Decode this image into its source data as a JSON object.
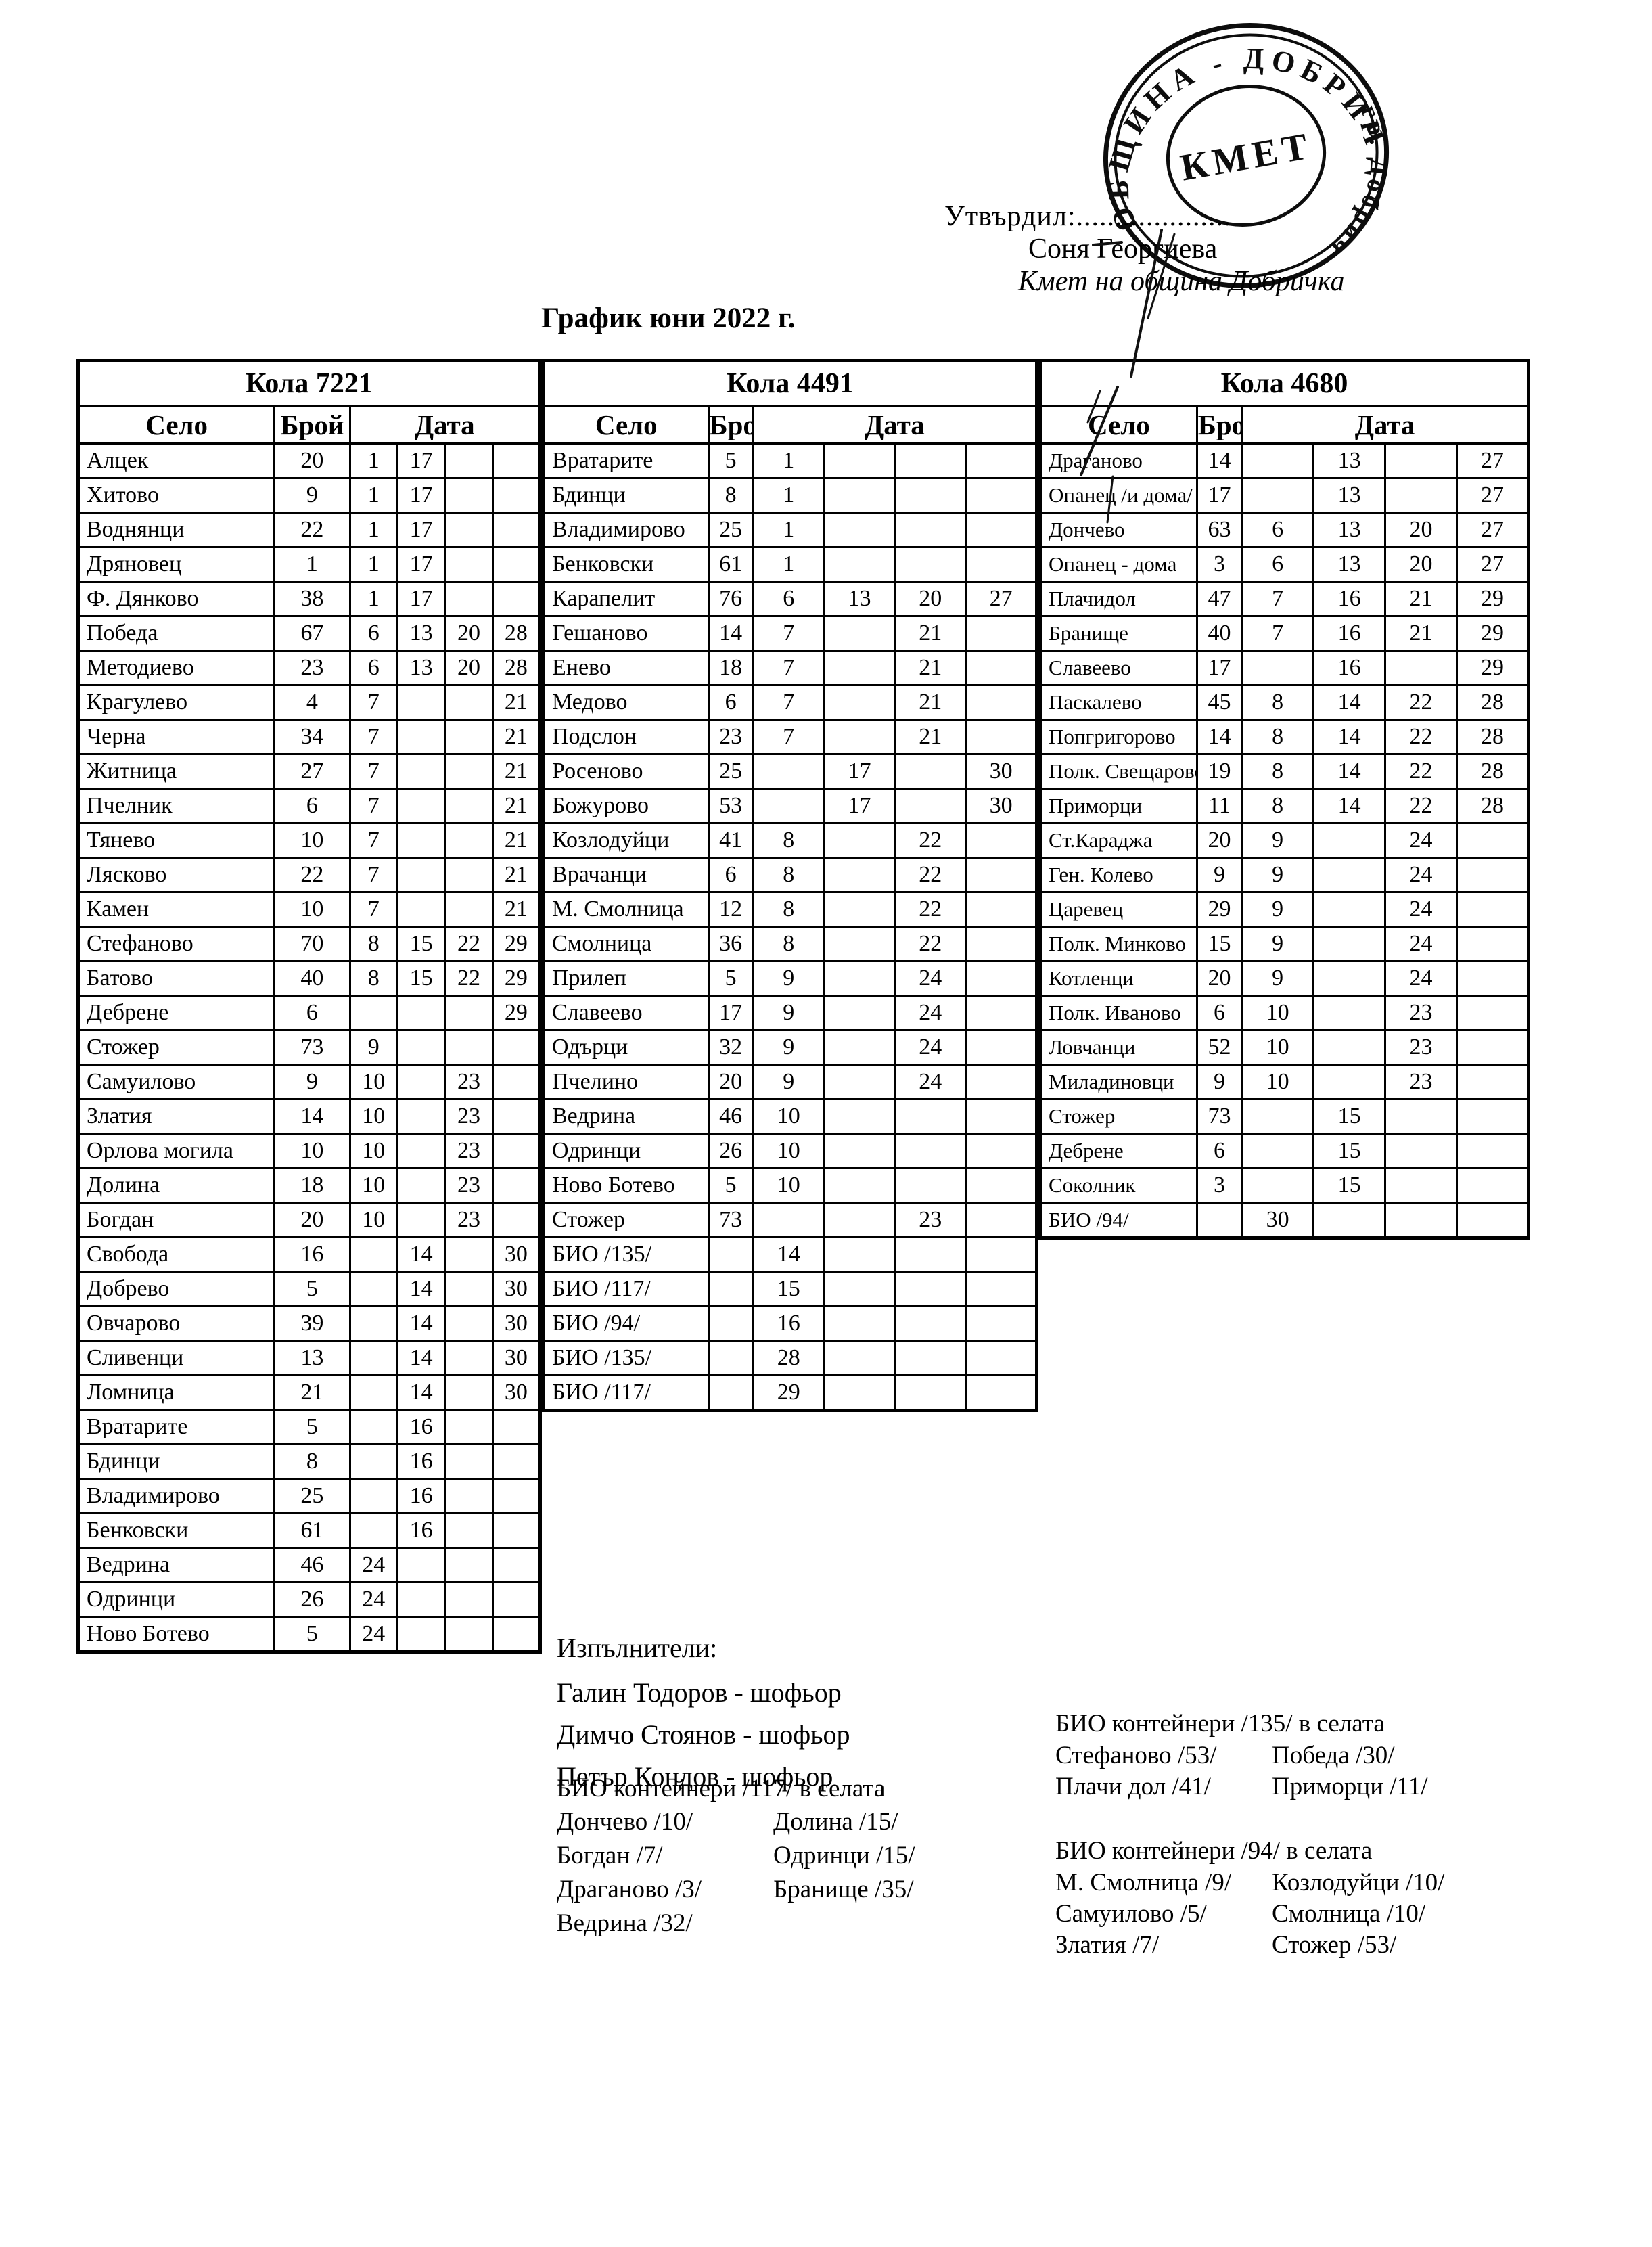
{
  "approval": {
    "label": "Утвърдил:....................",
    "name": "Соня Георгиева",
    "title": "Кмет на община Добричка"
  },
  "stamp": {
    "ring_text_top": "ОБЩИНА - ДОБРИЧ",
    "ring_text_right": "гр. Добрич",
    "center_text": "КМЕТ"
  },
  "title": "График юни 2022 г.",
  "columns": {
    "village": "Село",
    "count": "Брой",
    "date": "Дата"
  },
  "tables": [
    {
      "title": "Кола 7221",
      "rows": [
        [
          "Алцек",
          "20",
          [
            "1",
            "17",
            "",
            ""
          ]
        ],
        [
          "Хитово",
          "9",
          [
            "1",
            "17",
            "",
            ""
          ]
        ],
        [
          "Воднянци",
          "22",
          [
            "1",
            "17",
            "",
            ""
          ]
        ],
        [
          "Дряновец",
          "1",
          [
            "1",
            "17",
            "",
            ""
          ]
        ],
        [
          "Ф. Дянково",
          "38",
          [
            "1",
            "17",
            "",
            ""
          ]
        ],
        [
          "Победа",
          "67",
          [
            "6",
            "13",
            "20",
            "28"
          ]
        ],
        [
          "Методиево",
          "23",
          [
            "6",
            "13",
            "20",
            "28"
          ]
        ],
        [
          "Крагулево",
          "4",
          [
            "7",
            "",
            "",
            "21"
          ]
        ],
        [
          "Черна",
          "34",
          [
            "7",
            "",
            "",
            "21"
          ]
        ],
        [
          "Житница",
          "27",
          [
            "7",
            "",
            "",
            "21"
          ]
        ],
        [
          "Пчелник",
          "6",
          [
            "7",
            "",
            "",
            "21"
          ]
        ],
        [
          "Тянево",
          "10",
          [
            "7",
            "",
            "",
            "21"
          ]
        ],
        [
          "Лясково",
          "22",
          [
            "7",
            "",
            "",
            "21"
          ]
        ],
        [
          "Камен",
          "10",
          [
            "7",
            "",
            "",
            "21"
          ]
        ],
        [
          "Стефаново",
          "70",
          [
            "8",
            "15",
            "22",
            "29"
          ]
        ],
        [
          "Батово",
          "40",
          [
            "8",
            "15",
            "22",
            "29"
          ]
        ],
        [
          "Дебрене",
          "6",
          [
            "",
            "",
            "",
            "29"
          ]
        ],
        [
          "Стожер",
          "73",
          [
            "9",
            "",
            "",
            ""
          ]
        ],
        [
          "Самуилово",
          "9",
          [
            "10",
            "",
            "23",
            ""
          ]
        ],
        [
          "Златия",
          "14",
          [
            "10",
            "",
            "23",
            ""
          ]
        ],
        [
          "Орлова могила",
          "10",
          [
            "10",
            "",
            "23",
            ""
          ]
        ],
        [
          "Долина",
          "18",
          [
            "10",
            "",
            "23",
            ""
          ]
        ],
        [
          "Богдан",
          "20",
          [
            "10",
            "",
            "23",
            ""
          ]
        ],
        [
          "Свобода",
          "16",
          [
            "",
            "14",
            "",
            "30"
          ]
        ],
        [
          "Добрево",
          "5",
          [
            "",
            "14",
            "",
            "30"
          ]
        ],
        [
          "Овчарово",
          "39",
          [
            "",
            "14",
            "",
            "30"
          ]
        ],
        [
          "Сливенци",
          "13",
          [
            "",
            "14",
            "",
            "30"
          ]
        ],
        [
          "Ломница",
          "21",
          [
            "",
            "14",
            "",
            "30"
          ]
        ],
        [
          "Вратарите",
          "5",
          [
            "",
            "16",
            "",
            ""
          ]
        ],
        [
          "Бдинци",
          "8",
          [
            "",
            "16",
            "",
            ""
          ]
        ],
        [
          "Владимирово",
          "25",
          [
            "",
            "16",
            "",
            ""
          ]
        ],
        [
          "Бенковски",
          "61",
          [
            "",
            "16",
            "",
            ""
          ]
        ],
        [
          "Ведрина",
          "46",
          [
            "24",
            "",
            "",
            ""
          ]
        ],
        [
          "Одринци",
          "26",
          [
            "24",
            "",
            "",
            ""
          ]
        ],
        [
          "Ново Ботево",
          "5",
          [
            "24",
            "",
            "",
            ""
          ]
        ]
      ]
    },
    {
      "title": "Кола 4491",
      "rows": [
        [
          "Вратарите",
          "5",
          [
            "1",
            "",
            "",
            ""
          ]
        ],
        [
          "Бдинци",
          "8",
          [
            "1",
            "",
            "",
            ""
          ]
        ],
        [
          "Владимирово",
          "25",
          [
            "1",
            "",
            "",
            ""
          ]
        ],
        [
          "Бенковски",
          "61",
          [
            "1",
            "",
            "",
            ""
          ]
        ],
        [
          "Карапелит",
          "76",
          [
            "6",
            "13",
            "20",
            "27"
          ]
        ],
        [
          "Гешаново",
          "14",
          [
            "7",
            "",
            "21",
            ""
          ]
        ],
        [
          "Енево",
          "18",
          [
            "7",
            "",
            "21",
            ""
          ]
        ],
        [
          "Медово",
          "6",
          [
            "7",
            "",
            "21",
            ""
          ]
        ],
        [
          "Подслон",
          "23",
          [
            "7",
            "",
            "21",
            ""
          ]
        ],
        [
          "Росеново",
          "25",
          [
            "",
            "17",
            "",
            "30"
          ]
        ],
        [
          "Божурово",
          "53",
          [
            "",
            "17",
            "",
            "30"
          ]
        ],
        [
          "Козлодуйци",
          "41",
          [
            "8",
            "",
            "22",
            ""
          ]
        ],
        [
          "Врачанци",
          "6",
          [
            "8",
            "",
            "22",
            ""
          ]
        ],
        [
          "М. Смолница",
          "12",
          [
            "8",
            "",
            "22",
            ""
          ]
        ],
        [
          "Смолница",
          "36",
          [
            "8",
            "",
            "22",
            ""
          ]
        ],
        [
          "Прилеп",
          "5",
          [
            "9",
            "",
            "24",
            ""
          ]
        ],
        [
          "Славеево",
          "17",
          [
            "9",
            "",
            "24",
            ""
          ]
        ],
        [
          "Одърци",
          "32",
          [
            "9",
            "",
            "24",
            ""
          ]
        ],
        [
          "Пчелино",
          "20",
          [
            "9",
            "",
            "24",
            ""
          ]
        ],
        [
          "Ведрина",
          "46",
          [
            "10",
            "",
            "",
            ""
          ]
        ],
        [
          "Одринци",
          "26",
          [
            "10",
            "",
            "",
            ""
          ]
        ],
        [
          "Ново Ботево",
          "5",
          [
            "10",
            "",
            "",
            ""
          ]
        ],
        [
          "Стожер",
          "73",
          [
            "",
            "",
            "23",
            ""
          ]
        ],
        [
          "БИО /135/",
          "",
          [
            "14",
            "",
            "",
            ""
          ]
        ],
        [
          "БИО /117/",
          "",
          [
            "15",
            "",
            "",
            ""
          ]
        ],
        [
          "БИО /94/",
          "",
          [
            "16",
            "",
            "",
            ""
          ]
        ],
        [
          "БИО /135/",
          "",
          [
            "28",
            "",
            "",
            ""
          ]
        ],
        [
          "БИО /117/",
          "",
          [
            "29",
            "",
            "",
            ""
          ]
        ]
      ]
    },
    {
      "title": "Кола 4680",
      "rows": [
        [
          "Драганово",
          "14",
          [
            "",
            "13",
            "",
            "27"
          ]
        ],
        [
          "Опанец /и дома/",
          "17",
          [
            "",
            "13",
            "",
            "27"
          ]
        ],
        [
          "Дончево",
          "63",
          [
            "6",
            "13",
            "20",
            "27"
          ]
        ],
        [
          "Опанец - дома",
          "3",
          [
            "6",
            "13",
            "20",
            "27"
          ]
        ],
        [
          "Плачидол",
          "47",
          [
            "7",
            "16",
            "21",
            "29"
          ]
        ],
        [
          "Бранище",
          "40",
          [
            "7",
            "16",
            "21",
            "29"
          ]
        ],
        [
          "Славеево",
          "17",
          [
            "",
            "16",
            "",
            "29"
          ]
        ],
        [
          "Паскалево",
          "45",
          [
            "8",
            "14",
            "22",
            "28"
          ]
        ],
        [
          "Попгригорово",
          "14",
          [
            "8",
            "14",
            "22",
            "28"
          ]
        ],
        [
          "Полк. Свещарово",
          "19",
          [
            "8",
            "14",
            "22",
            "28"
          ]
        ],
        [
          "Приморци",
          "11",
          [
            "8",
            "14",
            "22",
            "28"
          ]
        ],
        [
          "Ст.Караджа",
          "20",
          [
            "9",
            "",
            "24",
            ""
          ]
        ],
        [
          "Ген. Колево",
          "9",
          [
            "9",
            "",
            "24",
            ""
          ]
        ],
        [
          "Царевец",
          "29",
          [
            "9",
            "",
            "24",
            ""
          ]
        ],
        [
          "Полк. Минково",
          "15",
          [
            "9",
            "",
            "24",
            ""
          ]
        ],
        [
          "Котленци",
          "20",
          [
            "9",
            "",
            "24",
            ""
          ]
        ],
        [
          "Полк. Иваново",
          "6",
          [
            "10",
            "",
            "23",
            ""
          ]
        ],
        [
          "Ловчанци",
          "52",
          [
            "10",
            "",
            "23",
            ""
          ]
        ],
        [
          "Миладиновци",
          "9",
          [
            "10",
            "",
            "23",
            ""
          ]
        ],
        [
          "Стожер",
          "73",
          [
            "",
            "15",
            "",
            ""
          ]
        ],
        [
          "Дебрене",
          "6",
          [
            "",
            "15",
            "",
            ""
          ]
        ],
        [
          "Соколник",
          "3",
          [
            "",
            "15",
            "",
            ""
          ]
        ],
        [
          "БИО /94/",
          "",
          [
            "30",
            "",
            "",
            ""
          ]
        ]
      ]
    }
  ],
  "executors": {
    "heading": "Изпълнители:",
    "items": [
      "Галин Тодоров - шофьор",
      "Димчо Стоянов - шофьор",
      "Петър Кондов - шофьор"
    ]
  },
  "bio_blocks": [
    {
      "heading": "БИО контейнери /117/ в селата",
      "col1": [
        "Дончево /10/",
        "Богдан /7/",
        "Драганово /3/",
        "Ведрина /32/"
      ],
      "col2": [
        "Долина /15/",
        "Одринци /15/",
        "Бранище /35/"
      ]
    },
    {
      "heading": "БИО контейнери /135/ в селата",
      "col1": [
        "Стефаново /53/",
        "Плачи дол /41/"
      ],
      "col2": [
        "Победа /30/",
        "Приморци /11/"
      ]
    },
    {
      "heading": "БИО контейнери /94/ в селата",
      "col1": [
        "М. Смолница /9/",
        "Самуилово /5/",
        "Златия /7/"
      ],
      "col2": [
        "Козлодуйци /10/",
        "Смолница /10/",
        "Стожер /53/"
      ]
    }
  ]
}
